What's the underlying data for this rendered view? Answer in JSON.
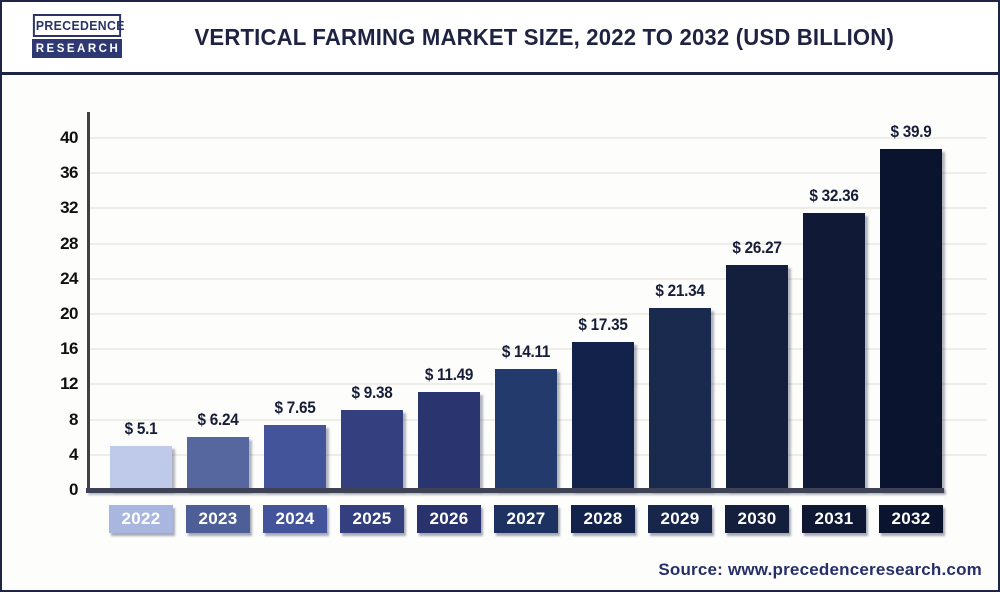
{
  "page": {
    "logo": {
      "line1": "PRECEDENCE",
      "line2": "RESEARCH"
    },
    "title": "VERTICAL FARMING MARKET SIZE, 2022 TO 2032 (USD BILLION)",
    "source": "Source: www.precedenceresearch.com"
  },
  "chart_data": {
    "type": "bar",
    "title": "Vertical Farming Market Size, 2022 to 2032 (USD Billion)",
    "unit": "USD Billion",
    "categories": [
      "2022",
      "2023",
      "2024",
      "2025",
      "2026",
      "2027",
      "2028",
      "2029",
      "2030",
      "2031",
      "2032"
    ],
    "values": [
      5.1,
      6.24,
      7.65,
      9.38,
      11.49,
      14.11,
      17.35,
      21.34,
      26.27,
      32.36,
      39.9
    ],
    "value_labels": [
      "$ 5.1",
      "$ 6.24",
      "$ 7.65",
      "$ 9.38",
      "$ 11.49",
      "$ 14.11",
      "$ 17.35",
      "$ 21.34",
      "$ 26.27",
      "$ 32.36",
      "$ 39.9"
    ],
    "bar_colors": [
      "#bfc9e9",
      "#55679e",
      "#44549a",
      "#333f7e",
      "#2a356f",
      "#233a6d",
      "#12224a",
      "#1a294e",
      "#141f3e",
      "#101a37",
      "#0b142e"
    ],
    "label_box_colors": [
      "#a9b6e0",
      "#4d5f96",
      "#44549a",
      "#333f7e",
      "#28336d",
      "#1d3260",
      "#12224a",
      "#17264a",
      "#141f3e",
      "#0e1833",
      "#0b142e"
    ],
    "ylim": [
      0,
      40
    ],
    "yticks": [
      0,
      4,
      8,
      12,
      16,
      20,
      24,
      28,
      32,
      36,
      40
    ],
    "grid": "horizontal",
    "legend": "none",
    "xlabel": "",
    "ylabel": ""
  }
}
